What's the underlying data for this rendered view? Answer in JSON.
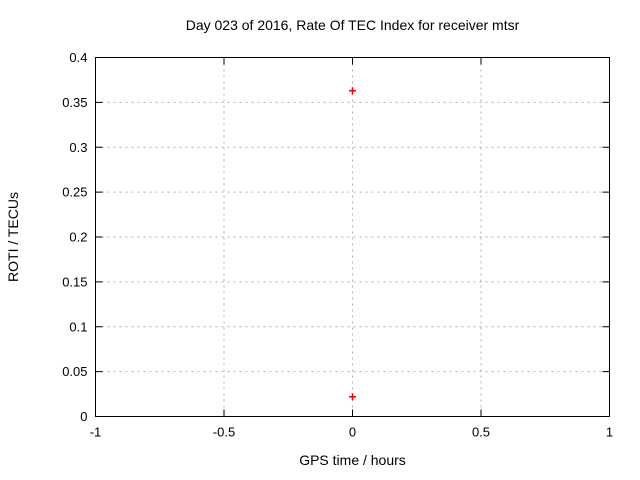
{
  "chart_data": {
    "type": "scatter",
    "title": "Day 023 of 2016, Rate Of TEC Index for receiver mtsr",
    "xlabel": "GPS time / hours",
    "ylabel": "ROTI / TECUs",
    "xlim": [
      -1,
      1
    ],
    "ylim": [
      0,
      0.4
    ],
    "xticks": [
      -1,
      -0.5,
      0,
      0.5,
      1
    ],
    "xtick_labels": [
      "-1",
      "-0.5",
      "0",
      "0.5",
      "1"
    ],
    "yticks": [
      0,
      0.05,
      0.1,
      0.15,
      0.2,
      0.25,
      0.3,
      0.35,
      0.4
    ],
    "ytick_labels": [
      "0",
      "0.05",
      "0.1",
      "0.15",
      "0.2",
      "0.25",
      "0.3",
      "0.35",
      "0.4"
    ],
    "grid": true,
    "grid_style": "dashed",
    "legend": "none",
    "series": [
      {
        "name": "ROTI",
        "marker": "plus",
        "color": "#ff0000",
        "points": [
          [
            0,
            0.363
          ],
          [
            0,
            0.022
          ]
        ]
      }
    ],
    "colors": {
      "background": "#ffffff",
      "axis": "#000000",
      "text": "#000000",
      "grid": "#b0b0b0",
      "marker": "#ff0000"
    }
  }
}
